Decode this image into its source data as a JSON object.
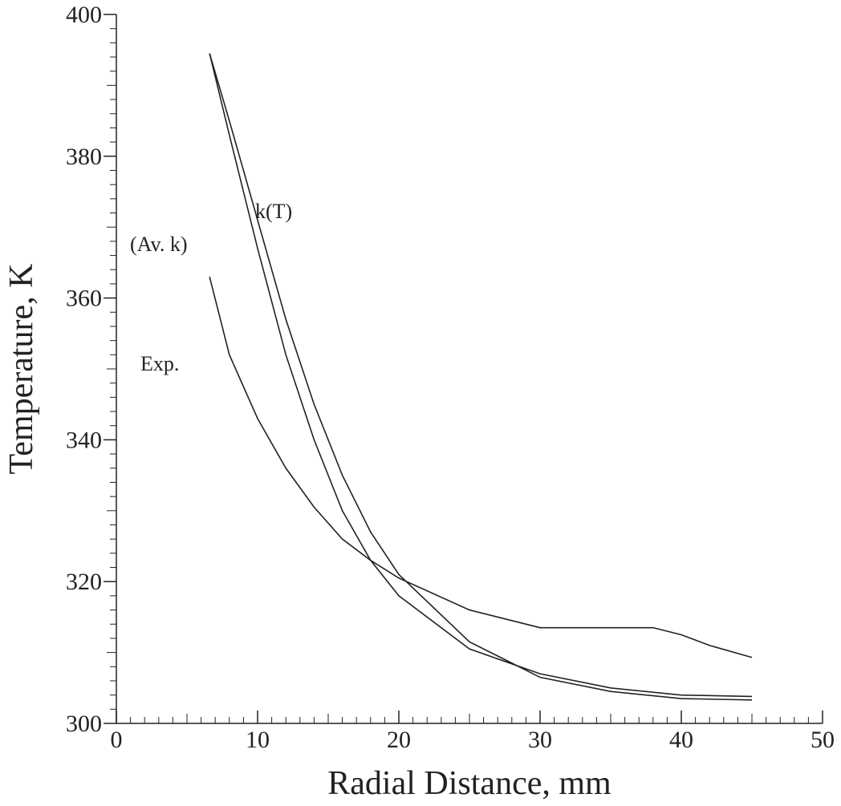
{
  "chart_data": {
    "type": "line",
    "x_label": "Radial Distance, mm",
    "y_label": "Temperature, K",
    "xlim": [
      0,
      50
    ],
    "xticks": [
      0,
      10,
      20,
      30,
      40,
      50
    ],
    "ylim": [
      300,
      400
    ],
    "yticks": [
      300,
      320,
      340,
      360,
      380,
      400
    ],
    "color": "#222222",
    "series": [
      {
        "name": "k(T)",
        "x": [
          6.6,
          8,
          10,
          12,
          14,
          16,
          18,
          20,
          25,
          30,
          35,
          40,
          45
        ],
        "values": [
          394.5,
          385,
          371,
          357,
          345,
          335,
          327,
          321,
          311.5,
          306.5,
          304.5,
          303.5,
          303.3
        ]
      },
      {
        "name": "(Av. k)",
        "x": [
          6.6,
          8,
          10,
          12,
          14,
          16,
          18,
          20,
          25,
          30,
          35,
          40,
          45
        ],
        "values": [
          394.5,
          383,
          367,
          352,
          340,
          330,
          323,
          318,
          310.5,
          307,
          305,
          304,
          303.8
        ]
      },
      {
        "name": "Exp.",
        "x": [
          6.6,
          8,
          10,
          12,
          14,
          16,
          18,
          20,
          25,
          30,
          35,
          38,
          40,
          42,
          45
        ],
        "values": [
          363,
          352,
          343,
          336,
          330.5,
          326,
          323,
          320.5,
          316,
          313.5,
          313.5,
          313.5,
          312.5,
          311,
          309.3
        ]
      }
    ]
  }
}
